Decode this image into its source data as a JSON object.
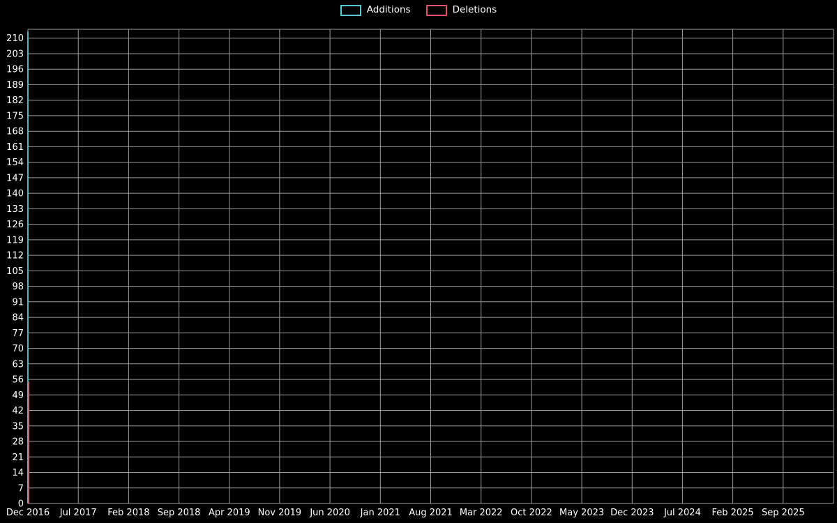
{
  "chart_data": {
    "type": "bar",
    "title": "",
    "background": "#000000",
    "text_color": "#ffffff",
    "grid_color": "#9e9e9e",
    "grid": true,
    "legend_position": "top-center",
    "xlabel": "",
    "ylabel": "",
    "x_tick_labels": [
      "Dec 2016",
      "Jul 2017",
      "Feb 2018",
      "Sep 2018",
      "Apr 2019",
      "Nov 2019",
      "Jun 2020",
      "Jan 2021",
      "Aug 2021",
      "Mar 2022",
      "Oct 2022",
      "May 2023",
      "Dec 2023",
      "Jul 2024",
      "Feb 2025",
      "Sep 2025"
    ],
    "y_ticks": [
      0,
      7,
      14,
      21,
      28,
      35,
      42,
      49,
      56,
      63,
      70,
      77,
      84,
      91,
      98,
      105,
      112,
      119,
      126,
      133,
      140,
      147,
      154,
      161,
      168,
      175,
      182,
      189,
      196,
      203,
      210
    ],
    "ylim": [
      0,
      214
    ],
    "series": [
      {
        "name": "Additions",
        "color": "#5bc6d0",
        "points": [
          {
            "x": "Dec 2016",
            "y": 213
          }
        ]
      },
      {
        "name": "Deletions",
        "color": "#e0556b",
        "points": [
          {
            "x": "Dec 2016",
            "y": 55
          }
        ]
      }
    ]
  }
}
